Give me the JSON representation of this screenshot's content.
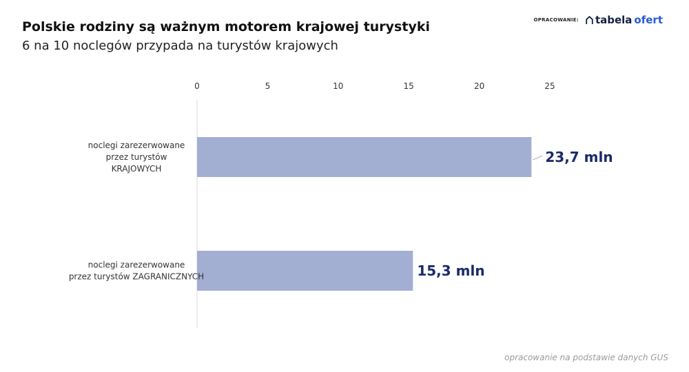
{
  "header": {
    "title": "Polskie rodziny są ważnym motorem krajowej turystyki",
    "subtitle": "6 na 10 noclegów przypada na turystów krajowych"
  },
  "brand": {
    "label": "OPRACOWANIE:",
    "logo_part1": "tabela",
    "logo_part2": "ofert",
    "icon": "home-outline-icon"
  },
  "footer": {
    "source": "opracowanie na podstawie danych GUS"
  },
  "colors": {
    "bar": "#a3aed3",
    "value_label": "#1b2a6b",
    "axis_line": "#d9d9d9",
    "connector": "#b0b0b0"
  },
  "chart_data": {
    "type": "bar",
    "orientation": "horizontal",
    "categories": [
      [
        "noclegi zarezerwowane",
        "przez turystów",
        "KRAJOWYCH"
      ],
      [
        "noclegi zarezerwowane",
        "przez turystów ZAGRANICZNYCH"
      ]
    ],
    "values": [
      23.7,
      15.3
    ],
    "value_labels": [
      "23,7 mln",
      "15,3 mln"
    ],
    "xlim": [
      0,
      25
    ],
    "x_ticks": [
      0,
      5,
      10,
      15,
      20,
      25
    ],
    "x_axis_position": "top",
    "grid": false
  }
}
